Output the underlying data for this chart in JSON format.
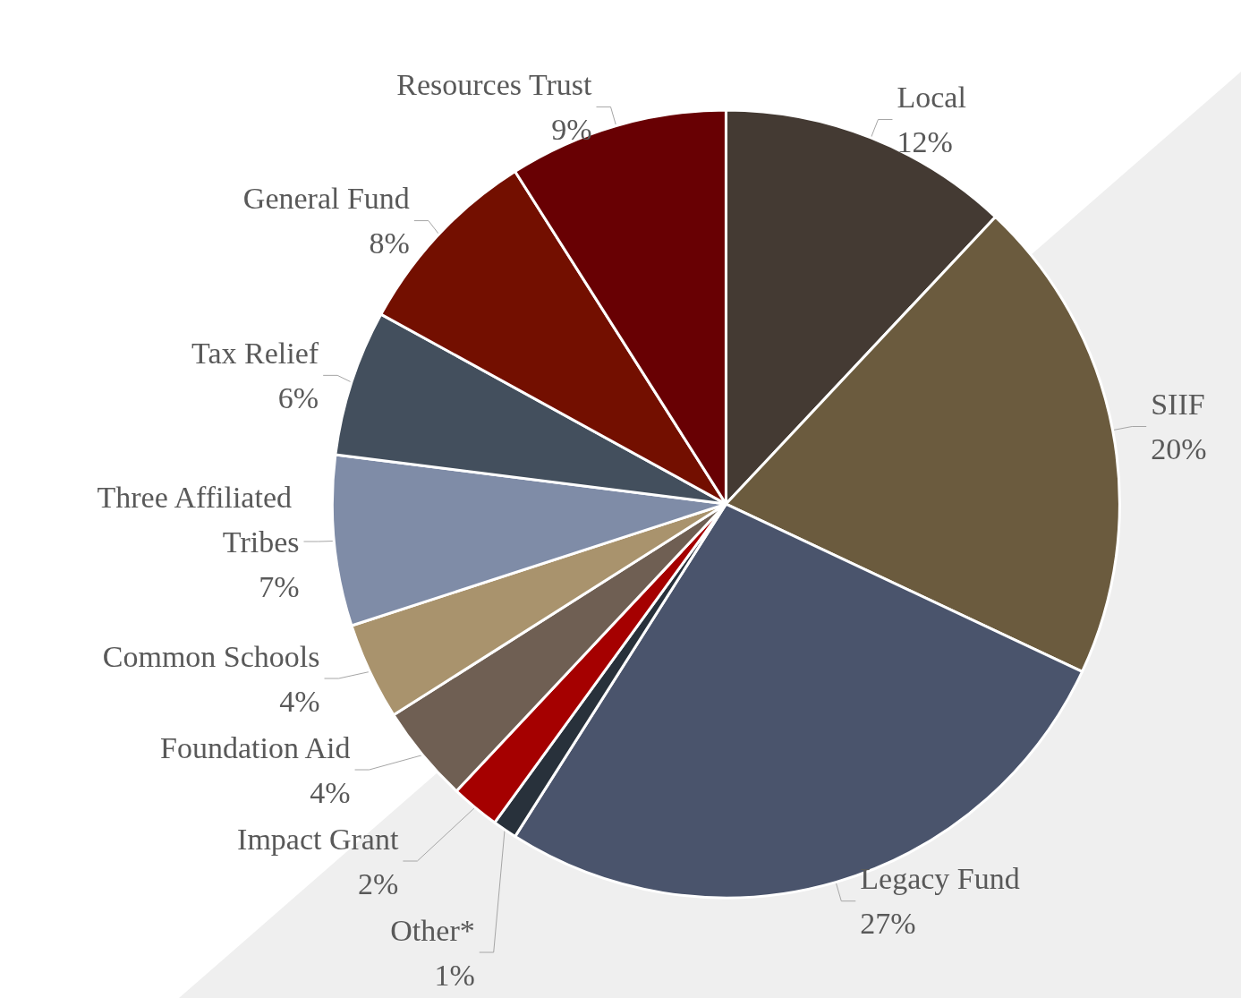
{
  "chart_data": {
    "type": "pie",
    "categories": [
      "Local",
      "SIIF",
      "Legacy Fund",
      "Other*",
      "Impact Grant",
      "Foundation Aid",
      "Common Schools",
      "Three Affiliated Tribes",
      "Tax Relief",
      "General Fund",
      "Resources Trust"
    ],
    "values": [
      12,
      20,
      27,
      1,
      2,
      4,
      4,
      7,
      6,
      8,
      9
    ],
    "colors": [
      "#443a33",
      "#6b5b3e",
      "#4a546c",
      "#28313b",
      "#a50000",
      "#6f5f53",
      "#a9936d",
      "#7f8ca7",
      "#434f5d",
      "#730f00",
      "#680003"
    ],
    "value_labels": [
      "12%",
      "20%",
      "27%",
      "1%",
      "2%",
      "4%",
      "4%",
      "7%",
      "6%",
      "8%",
      "9%"
    ],
    "legend": false
  }
}
